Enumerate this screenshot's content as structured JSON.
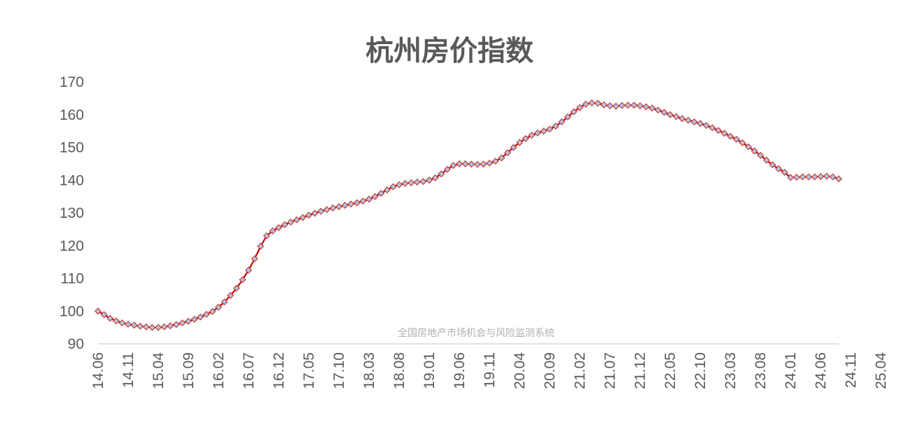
{
  "chart_data": {
    "type": "line",
    "title": "杭州房价指数",
    "watermark": "全国房地产市场机会与风险监测系统",
    "ylim": [
      90,
      170
    ],
    "yticks": [
      90,
      100,
      110,
      120,
      130,
      140,
      150,
      160,
      170
    ],
    "xtick_labels": [
      "14.06",
      "14.11",
      "15.04",
      "15.09",
      "16.02",
      "16.07",
      "16.12",
      "17.05",
      "17.10",
      "18.03",
      "18.08",
      "19.01",
      "19.06",
      "19.11",
      "20.04",
      "20.09",
      "21.02",
      "21.07",
      "21.12",
      "22.05",
      "22.10",
      "23.03",
      "23.08",
      "24.01",
      "24.06",
      "24.11",
      "25.04"
    ],
    "x_start": "2014-06",
    "grid": false,
    "colors": {
      "line": "#cc0000",
      "marker_fill": "#b4bfe6",
      "marker_stroke": "#c0392b",
      "axis": "#d9d9d9"
    },
    "series": [
      {
        "values": [
          100.0,
          98.9,
          97.8,
          97.0,
          96.4,
          96.0,
          95.7,
          95.4,
          95.2,
          95.0,
          95.0,
          95.2,
          95.5,
          95.9,
          96.4,
          96.9,
          97.5,
          98.2,
          99.0,
          99.9,
          101.2,
          102.8,
          104.8,
          107.0,
          109.6,
          112.5,
          116.0,
          119.8,
          123.0,
          124.5,
          125.5,
          126.4,
          127.2,
          127.9,
          128.6,
          129.3,
          129.9,
          130.5,
          131.0,
          131.5,
          131.9,
          132.3,
          132.7,
          133.1,
          133.6,
          134.2,
          135.0,
          136.0,
          137.0,
          138.0,
          138.6,
          139.0,
          139.2,
          139.4,
          139.6,
          140.0,
          140.7,
          141.9,
          143.3,
          144.5,
          145.0,
          145.0,
          144.9,
          144.8,
          144.9,
          145.2,
          145.8,
          146.8,
          148.4,
          150.0,
          151.5,
          152.7,
          153.7,
          154.4,
          155.0,
          155.6,
          156.5,
          157.8,
          159.3,
          160.9,
          162.2,
          163.2,
          163.6,
          163.5,
          163.0,
          162.7,
          162.6,
          162.8,
          162.9,
          162.9,
          162.7,
          162.4,
          162.0,
          161.4,
          160.7,
          160.0,
          159.4,
          158.8,
          158.3,
          157.8,
          157.3,
          156.7,
          156.0,
          155.2,
          154.3,
          153.4,
          152.5,
          151.4,
          150.2,
          148.9,
          147.6,
          146.1,
          144.7,
          143.5,
          142.4,
          140.8,
          140.9,
          141.0,
          141.0,
          141.0,
          141.1,
          141.2,
          141.0,
          140.4
        ]
      }
    ]
  }
}
